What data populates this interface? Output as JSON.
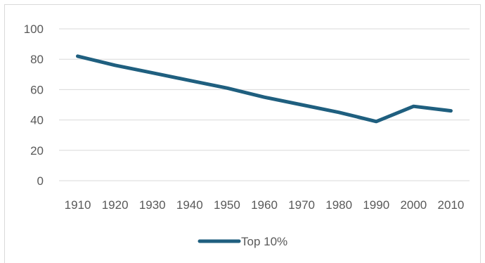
{
  "chart_data": {
    "type": "line",
    "title": "",
    "xlabel": "",
    "ylabel": "",
    "categories": [
      "1910",
      "1920",
      "1930",
      "1940",
      "1950",
      "1960",
      "1970",
      "1980",
      "1990",
      "2000",
      "2010"
    ],
    "series": [
      {
        "name": "Top 10%",
        "values": [
          82,
          76,
          71,
          66,
          61,
          55,
          50,
          45,
          39,
          49,
          46
        ]
      }
    ],
    "ylim": [
      0,
      100
    ],
    "yticks": [
      0,
      20,
      40,
      60,
      80,
      100
    ],
    "grid": "horizontal",
    "legend": "bottom",
    "colors": {
      "series": "#1f5f7f",
      "grid": "#d9d9d9",
      "text": "#595959"
    }
  }
}
